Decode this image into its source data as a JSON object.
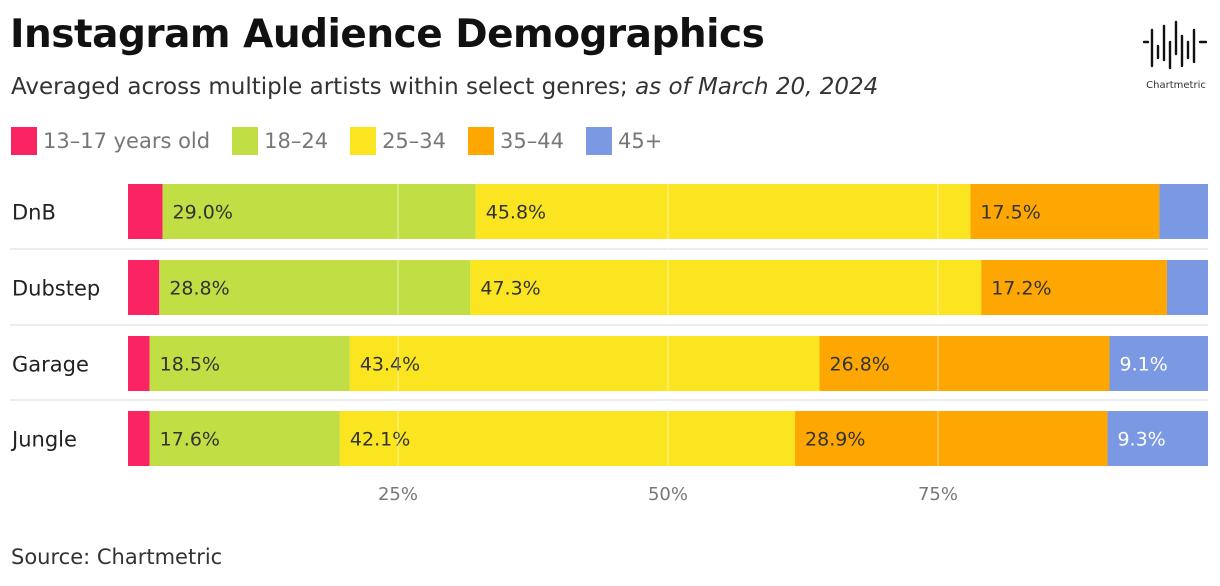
{
  "title": "Instagram Audience Demographics",
  "subtitle": {
    "main": "Averaged across multiple artists within select genres; ",
    "date": "as of March 20, 2024"
  },
  "source": "Source: Chartmetric",
  "logo": {
    "text": "Chartmetric"
  },
  "chart_data": {
    "type": "bar",
    "orientation": "horizontal",
    "stacked": true,
    "categories": [
      "DnB",
      "Dubstep",
      "Garage",
      "Jungle"
    ],
    "series": [
      {
        "name": "13–17 years old",
        "color": "#fb2462",
        "values": [
          3.2,
          2.9,
          2.0,
          2.0
        ],
        "labels": [
          "",
          "",
          "",
          ""
        ]
      },
      {
        "name": "18–24",
        "color": "#c1df45",
        "values": [
          29.0,
          28.8,
          18.5,
          17.6
        ],
        "labels": [
          "29.0%",
          "28.8%",
          "18.5%",
          "17.6%"
        ]
      },
      {
        "name": "25–34",
        "color": "#fae520",
        "values": [
          45.8,
          47.3,
          43.4,
          42.1
        ],
        "labels": [
          "45.8%",
          "47.3%",
          "43.4%",
          "42.1%"
        ]
      },
      {
        "name": "35–44",
        "color": "#fea702",
        "values": [
          17.5,
          17.2,
          26.8,
          28.9
        ],
        "labels": [
          "17.5%",
          "17.2%",
          "26.8%",
          "28.9%"
        ]
      },
      {
        "name": "45+",
        "color": "#7b98e3",
        "values": [
          4.5,
          3.8,
          9.1,
          9.3
        ],
        "labels": [
          "",
          "",
          "9.1%",
          "9.3%"
        ]
      }
    ],
    "xlim": [
      0,
      100
    ],
    "xticks": [
      25,
      50,
      75
    ],
    "xtick_labels": [
      "25%",
      "50%",
      "75%"
    ],
    "grid": true,
    "legend_position": "top-left"
  }
}
